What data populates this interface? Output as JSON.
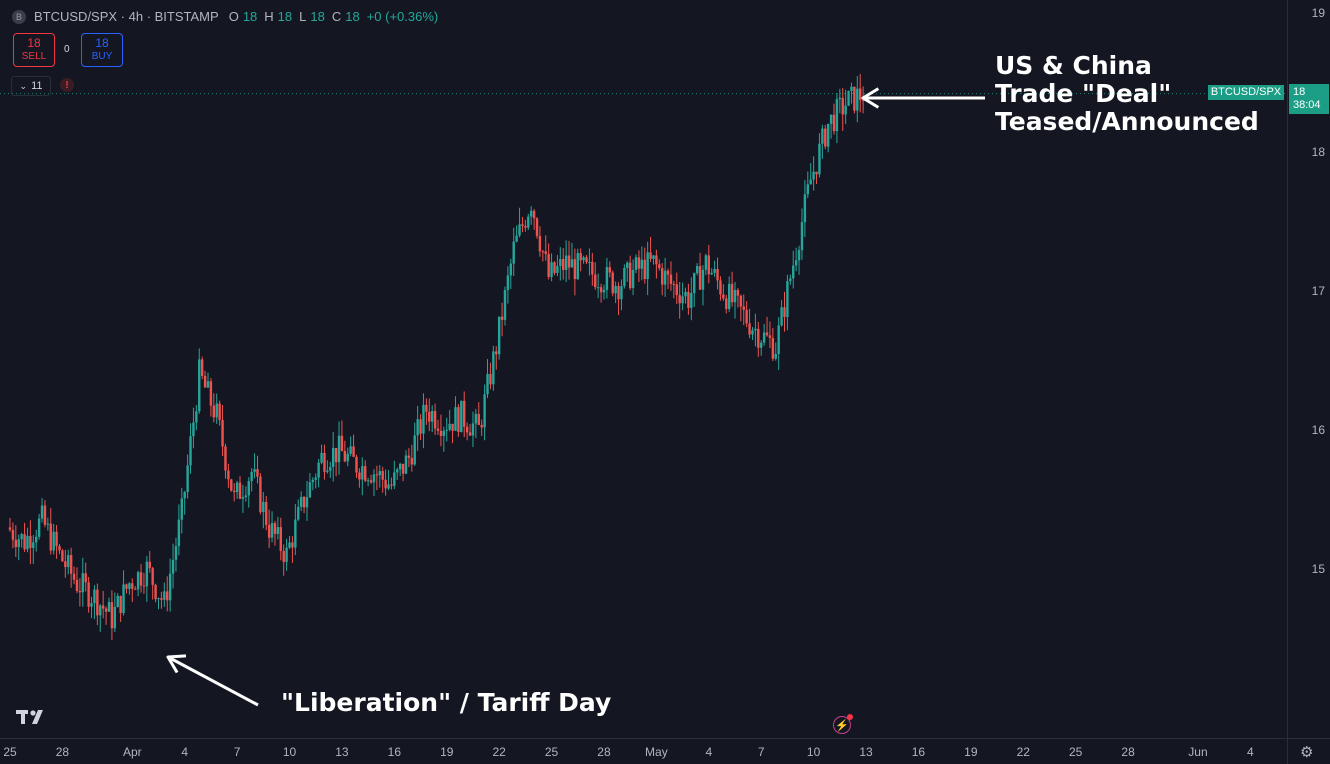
{
  "legend": {
    "symbol_icon": "B",
    "symbol": "BTCUSD/SPX · 4h · BITSTAMP",
    "ohlc": [
      {
        "k": "O",
        "v": "18"
      },
      {
        "k": "H",
        "v": "18"
      },
      {
        "k": "L",
        "v": "18"
      },
      {
        "k": "C",
        "v": "18"
      }
    ],
    "change": "+0 (+0.36%)"
  },
  "trade": {
    "sell_value": "18",
    "sell_label": "SELL",
    "spread": "0",
    "buy_value": "18",
    "buy_label": "BUY"
  },
  "indicators_count": "11",
  "alert_icon": "!",
  "price_tag": {
    "value": "18",
    "countdown": "38:04",
    "symbol": "BTCUSD/SPX"
  },
  "annotations": {
    "top": [
      "US & China",
      "Trade \"Deal\"",
      "Teased/Announced"
    ],
    "bottom": "\"Liberation\" / Tariff Day"
  },
  "colors": {
    "up": "#26a69a",
    "down": "#ef5350",
    "background": "#141722",
    "accent": "#1b9e85"
  },
  "icons": [
    "tradingview-logo-icon",
    "lightning-icon",
    "settings-icon",
    "chevron-down-icon"
  ],
  "chart_data": {
    "type": "candlestick",
    "title": "BTCUSD/SPX · 4h · BITSTAMP",
    "y_ticks": [
      "15",
      "16",
      "17",
      "18",
      "19"
    ],
    "x_ticks": [
      "25",
      "28",
      "Apr",
      "4",
      "7",
      "10",
      "13",
      "16",
      "19",
      "22",
      "25",
      "28",
      "May",
      "4",
      "7",
      "10",
      "13",
      "16",
      "19",
      "22",
      "25",
      "28",
      "Jun",
      "4"
    ],
    "ylim": [
      14.0,
      19.1
    ],
    "last_price": 18.42,
    "daily_close": [
      {
        "date": "Mar 25",
        "value": 15.3
      },
      {
        "date": "Mar 26",
        "value": 15.2
      },
      {
        "date": "Mar 27",
        "value": 15.35
      },
      {
        "date": "Mar 28",
        "value": 15.1
      },
      {
        "date": "Mar 29",
        "value": 14.9
      },
      {
        "date": "Mar 30",
        "value": 14.8
      },
      {
        "date": "Mar 31",
        "value": 14.65
      },
      {
        "date": "Apr 1",
        "value": 14.9
      },
      {
        "date": "Apr 2",
        "value": 15.0
      },
      {
        "date": "Apr 3",
        "value": 14.75
      },
      {
        "date": "Apr 4",
        "value": 15.4
      },
      {
        "date": "Apr 5",
        "value": 16.4
      },
      {
        "date": "Apr 6",
        "value": 16.1
      },
      {
        "date": "Apr 7",
        "value": 15.5
      },
      {
        "date": "Apr 8",
        "value": 15.7
      },
      {
        "date": "Apr 9",
        "value": 15.3
      },
      {
        "date": "Apr 10",
        "value": 15.1
      },
      {
        "date": "Apr 11",
        "value": 15.5
      },
      {
        "date": "Apr 12",
        "value": 15.8
      },
      {
        "date": "Apr 13",
        "value": 15.85
      },
      {
        "date": "Apr 14",
        "value": 15.75
      },
      {
        "date": "Apr 15",
        "value": 15.7
      },
      {
        "date": "Apr 16",
        "value": 15.6
      },
      {
        "date": "Apr 17",
        "value": 15.8
      },
      {
        "date": "Apr 18",
        "value": 16.15
      },
      {
        "date": "Apr 19",
        "value": 16.05
      },
      {
        "date": "Apr 20",
        "value": 16.1
      },
      {
        "date": "Apr 21",
        "value": 16.0
      },
      {
        "date": "Apr 22",
        "value": 16.6
      },
      {
        "date": "Apr 23",
        "value": 17.3
      },
      {
        "date": "Apr 24",
        "value": 17.65
      },
      {
        "date": "Apr 25",
        "value": 17.1
      },
      {
        "date": "Apr 26",
        "value": 17.2
      },
      {
        "date": "Apr 27",
        "value": 17.15
      },
      {
        "date": "Apr 28",
        "value": 17.1
      },
      {
        "date": "Apr 29",
        "value": 17.05
      },
      {
        "date": "Apr 30",
        "value": 17.15
      },
      {
        "date": "May 1",
        "value": 17.2
      },
      {
        "date": "May 2",
        "value": 17.05
      },
      {
        "date": "May 3",
        "value": 16.95
      },
      {
        "date": "May 4",
        "value": 17.2
      },
      {
        "date": "May 5",
        "value": 17.0
      },
      {
        "date": "May 6",
        "value": 16.85
      },
      {
        "date": "May 7",
        "value": 16.7
      },
      {
        "date": "May 8",
        "value": 16.6
      },
      {
        "date": "May 9",
        "value": 17.2
      },
      {
        "date": "May 10",
        "value": 17.8
      },
      {
        "date": "May 11",
        "value": 18.2
      },
      {
        "date": "May 12",
        "value": 18.35
      },
      {
        "date": "May 13",
        "value": 18.42
      }
    ]
  }
}
